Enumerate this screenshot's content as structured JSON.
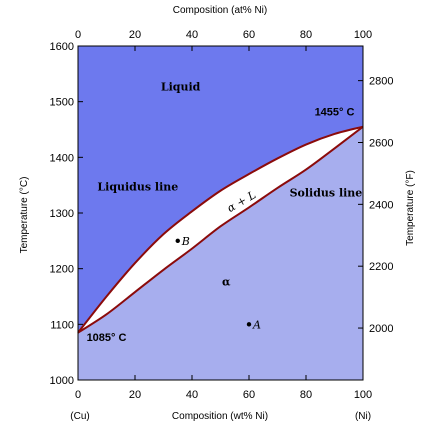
{
  "chart_data": {
    "type": "diagram",
    "title": "",
    "x_axis_top": {
      "label": "Composition (at% Ni)",
      "ticks": [
        0,
        20,
        40,
        60,
        80,
        100
      ],
      "range": [
        0,
        100
      ]
    },
    "x_axis_bottom": {
      "label": "Composition (wt% Ni)",
      "ticks": [
        0,
        20,
        40,
        60,
        80,
        100
      ],
      "range": [
        0,
        100
      ],
      "end_labels": {
        "left": "(Cu)",
        "right": "(Ni)"
      }
    },
    "y_axis_left": {
      "label": "Temperature (°C)",
      "ticks": [
        1000,
        1100,
        1200,
        1300,
        1400,
        1500,
        1600
      ],
      "range": [
        1000,
        1600
      ]
    },
    "y_axis_right": {
      "label": "Temperature (°F)",
      "ticks": [
        2000,
        2200,
        2400,
        2600,
        2800
      ]
    },
    "liquidus": {
      "x": [
        0,
        10,
        20,
        30,
        40,
        50,
        60,
        70,
        80,
        90,
        100
      ],
      "y": [
        1085,
        1150,
        1210,
        1262,
        1303,
        1340,
        1370,
        1398,
        1423,
        1442,
        1455
      ]
    },
    "solidus": {
      "x": [
        0,
        10,
        20,
        30,
        40,
        50,
        60,
        70,
        80,
        90,
        100
      ],
      "y": [
        1085,
        1118,
        1158,
        1198,
        1236,
        1276,
        1310,
        1345,
        1378,
        1416,
        1455
      ]
    },
    "regions": [
      {
        "label": "Liquid",
        "x": 36,
        "y": 1520
      },
      {
        "label": "α",
        "x": 52,
        "y": 1170
      },
      {
        "label": "α + L",
        "x": 58,
        "y": 1315,
        "angle": -30
      }
    ],
    "line_labels": [
      {
        "label": "Liquidus line",
        "x": 21,
        "y": 1340
      },
      {
        "label": "Solidus line",
        "x": 87,
        "y": 1330
      }
    ],
    "points": [
      {
        "label": "B",
        "x": 35,
        "y": 1250
      },
      {
        "label": "A",
        "x": 60,
        "y": 1100
      }
    ],
    "annotations": [
      {
        "label": "1455° C",
        "x": 90,
        "y": 1475
      },
      {
        "label": "1085° C",
        "x": 10,
        "y": 1070
      }
    ],
    "colors": {
      "liquid": "#6d79ee",
      "alpha": "#a7aeee",
      "two_phase": "#ffffff",
      "curve": "#8b0b0b"
    }
  }
}
